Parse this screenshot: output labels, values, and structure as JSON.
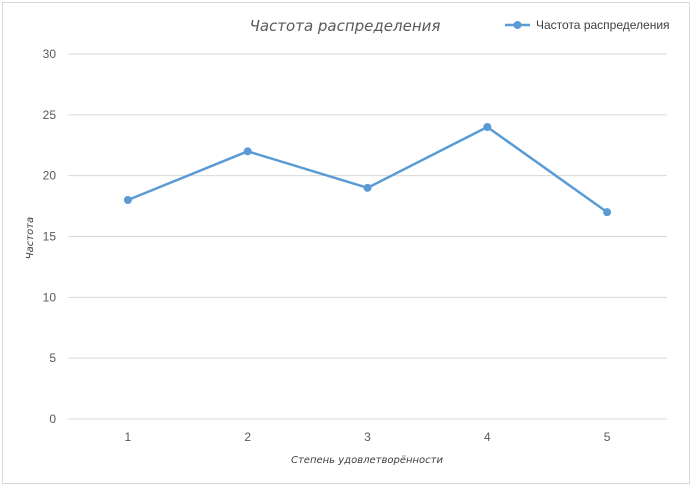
{
  "chart_data": {
    "type": "line",
    "title": "Частота распределения",
    "xlabel": "Степень удовлетворённости",
    "ylabel": "Частота",
    "categories": [
      "1",
      "2",
      "3",
      "4",
      "5"
    ],
    "series": [
      {
        "name": "Частота распределения",
        "values": [
          18,
          22,
          19,
          24,
          17
        ],
        "color": "#5b9bd5"
      }
    ],
    "ylim": [
      0,
      30
    ],
    "yticks": [
      "0",
      "5",
      "10",
      "15",
      "20",
      "25",
      "30"
    ],
    "grid": true,
    "legend_position": "top-right"
  }
}
